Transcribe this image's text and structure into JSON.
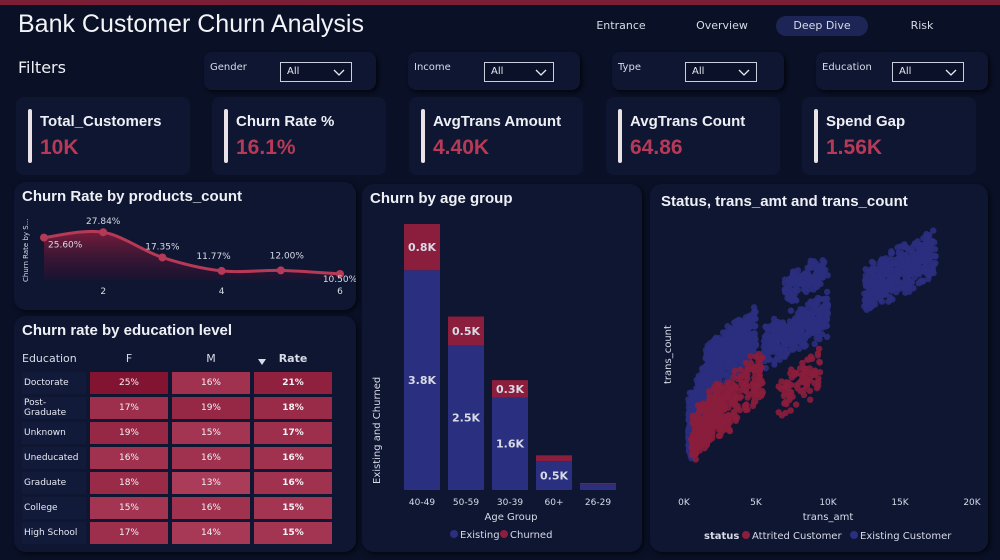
{
  "header": {
    "title": "Bank Customer Churn Analysis",
    "nav": [
      "Entrance",
      "Overview",
      "Deep Dive",
      "Risk"
    ],
    "active_nav": "Deep Dive"
  },
  "filters": {
    "label": "Filters",
    "items": [
      {
        "label": "Gender",
        "value": "All"
      },
      {
        "label": "Income",
        "value": "All"
      },
      {
        "label": "Type",
        "value": "All"
      },
      {
        "label": "Education",
        "value": "All"
      }
    ]
  },
  "kpis": [
    {
      "name": "Total_Customers",
      "value": "10K"
    },
    {
      "name": "Churn Rate %",
      "value": "16.1%"
    },
    {
      "name": "AvgTrans Amount",
      "value": "4.40K"
    },
    {
      "name": "AvgTrans Count",
      "value": "64.86"
    },
    {
      "name": "Spend Gap",
      "value": "1.56K"
    }
  ],
  "colors": {
    "accent": "#b63a57",
    "existing": "#2b2f7f",
    "churned": "#8a1e3c",
    "background": "#0a1026",
    "panel": "#0f1632"
  },
  "chart_data": [
    {
      "type": "area",
      "title": "Churn Rate by products_count",
      "ylabel": "Churn Rate by S...",
      "x": [
        1,
        2,
        3,
        4,
        5,
        6
      ],
      "values": [
        25.6,
        27.84,
        17.35,
        11.77,
        12.0,
        10.5
      ],
      "data_labels": [
        "25.60%",
        "27.84%",
        "17.35%",
        "11.77%",
        "12.00%",
        "10.50%"
      ],
      "xticks": [
        "2",
        "4",
        "6"
      ],
      "xlim": [
        1,
        6
      ],
      "ylim": [
        8,
        30
      ],
      "grid": false
    },
    {
      "type": "table",
      "title": "Churn rate by education level",
      "columns": [
        "Education",
        "F",
        "M",
        "Rate"
      ],
      "rows": [
        {
          "label": "Doctorate",
          "f": "25%",
          "m": "16%",
          "rate": "21%",
          "f_val": 25,
          "m_val": 16,
          "rate_val": 21
        },
        {
          "label": "Post-Graduate",
          "f": "17%",
          "m": "19%",
          "rate": "18%",
          "f_val": 17,
          "m_val": 19,
          "rate_val": 18
        },
        {
          "label": "Unknown",
          "f": "19%",
          "m": "15%",
          "rate": "17%",
          "f_val": 19,
          "m_val": 15,
          "rate_val": 17
        },
        {
          "label": "Uneducated",
          "f": "16%",
          "m": "16%",
          "rate": "16%",
          "f_val": 16,
          "m_val": 16,
          "rate_val": 16
        },
        {
          "label": "Graduate",
          "f": "18%",
          "m": "13%",
          "rate": "16%",
          "f_val": 18,
          "m_val": 13,
          "rate_val": 16
        },
        {
          "label": "College",
          "f": "15%",
          "m": "16%",
          "rate": "15%",
          "f_val": 15,
          "m_val": 16,
          "rate_val": 15
        },
        {
          "label": "High School",
          "f": "17%",
          "m": "14%",
          "rate": "15%",
          "f_val": 17,
          "m_val": 14,
          "rate_val": 15
        }
      ],
      "sorted_column": "Rate"
    },
    {
      "type": "bar",
      "stacked": true,
      "title": "Churn by age group",
      "xlabel": "Age Group",
      "ylabel": "Existing and Churned",
      "categories": [
        "40-49",
        "50-59",
        "30-39",
        "60+",
        "26-29"
      ],
      "series": [
        {
          "name": "Existing",
          "values": [
            3.8,
            2.5,
            1.6,
            0.5,
            0.1
          ],
          "labels": [
            "3.8K",
            "2.5K",
            "1.6K",
            "0.5K",
            ""
          ]
        },
        {
          "name": "Churned",
          "values": [
            0.8,
            0.5,
            0.3,
            0.1,
            0.02
          ],
          "labels": [
            "0.8K",
            "0.5K",
            "0.3K",
            "",
            ""
          ]
        }
      ],
      "ylim": [
        0,
        4.6
      ],
      "legend": "bottom"
    },
    {
      "type": "scatter",
      "title": "Status, trans_amt and trans_count",
      "xlabel": "trans_amt",
      "ylabel": "trans_count",
      "xticks": [
        "0K",
        "5K",
        "10K",
        "15K",
        "20K"
      ],
      "xlim": [
        0,
        20000
      ],
      "ylim": [
        10,
        140
      ],
      "legend_title": "status",
      "legend": "bottom",
      "series": [
        {
          "name": "Attrited Customer",
          "clusters": [
            {
              "x": [
                500,
                2500
              ],
              "y": [
                25,
                60
              ],
              "n": 260
            },
            {
              "x": [
                2200,
                5500
              ],
              "y": [
                35,
                75
              ],
              "n": 180
            },
            {
              "x": [
                6500,
                9500
              ],
              "y": [
                45,
                75
              ],
              "n": 90
            }
          ]
        },
        {
          "name": "Existing Customer",
          "clusters": [
            {
              "x": [
                300,
                2400
              ],
              "y": [
                25,
                80
              ],
              "n": 420
            },
            {
              "x": [
                1500,
                5000
              ],
              "y": [
                55,
                95
              ],
              "n": 460
            },
            {
              "x": [
                5500,
                10000
              ],
              "y": [
                70,
                100
              ],
              "n": 320
            },
            {
              "x": [
                7000,
                10000
              ],
              "y": [
                100,
                118
              ],
              "n": 120
            },
            {
              "x": [
                12500,
                17500
              ],
              "y": [
                95,
                130
              ],
              "n": 380
            }
          ]
        }
      ]
    }
  ]
}
